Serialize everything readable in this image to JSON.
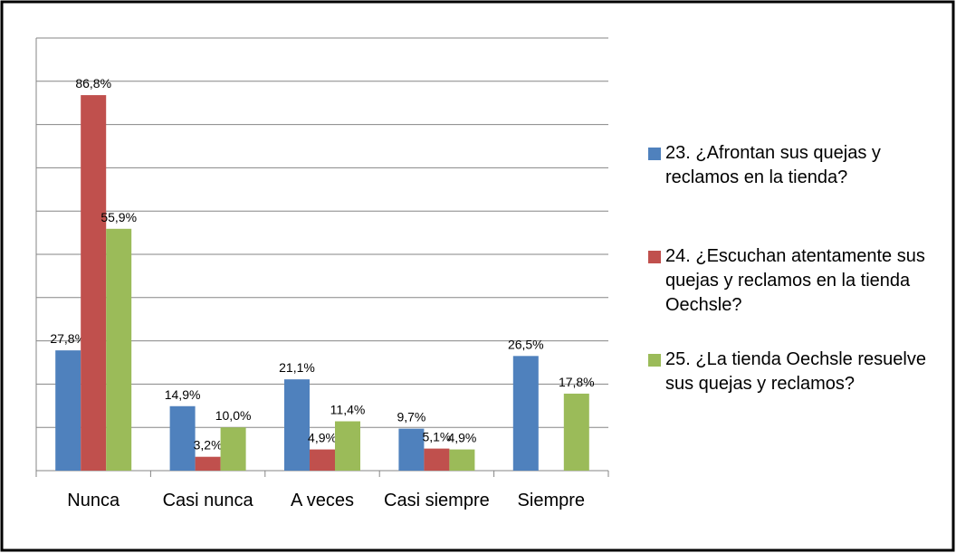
{
  "chart_data": {
    "type": "bar",
    "categories": [
      "Nunca",
      "Casi nunca",
      "A veces",
      "Casi siempre",
      "Siempre"
    ],
    "series": [
      {
        "name": "23.  ¿Afrontan sus quejas y reclamos en la tienda?",
        "color": "#4f81bd",
        "values": [
          27.8,
          14.9,
          21.1,
          9.7,
          26.5
        ],
        "value_labels": [
          "27,8%",
          "14,9%",
          "21,1%",
          "9,7%",
          "26,5%"
        ]
      },
      {
        "name": "24.  ¿Escuchan atentamente sus quejas y reclamos en la tienda Oechsle?",
        "color": "#c0504d",
        "values": [
          86.8,
          3.2,
          4.9,
          5.1,
          null
        ],
        "value_labels": [
          "86,8%",
          "3,2%",
          "4,9%",
          "5,1%",
          null
        ]
      },
      {
        "name": "25.  ¿La tienda Oechsle resuelve sus quejas y reclamos?",
        "color": "#9bbb59",
        "values": [
          55.9,
          10.0,
          11.4,
          4.9,
          17.8
        ],
        "value_labels": [
          "55,9%",
          "10,0%",
          "11,4%",
          "4,9%",
          "17,8%"
        ]
      }
    ],
    "ylim": [
      0,
      100
    ],
    "yticks": [
      0,
      10,
      20,
      30,
      40,
      50,
      60,
      70,
      80,
      90,
      100
    ],
    "grid": true,
    "legend": "right"
  }
}
